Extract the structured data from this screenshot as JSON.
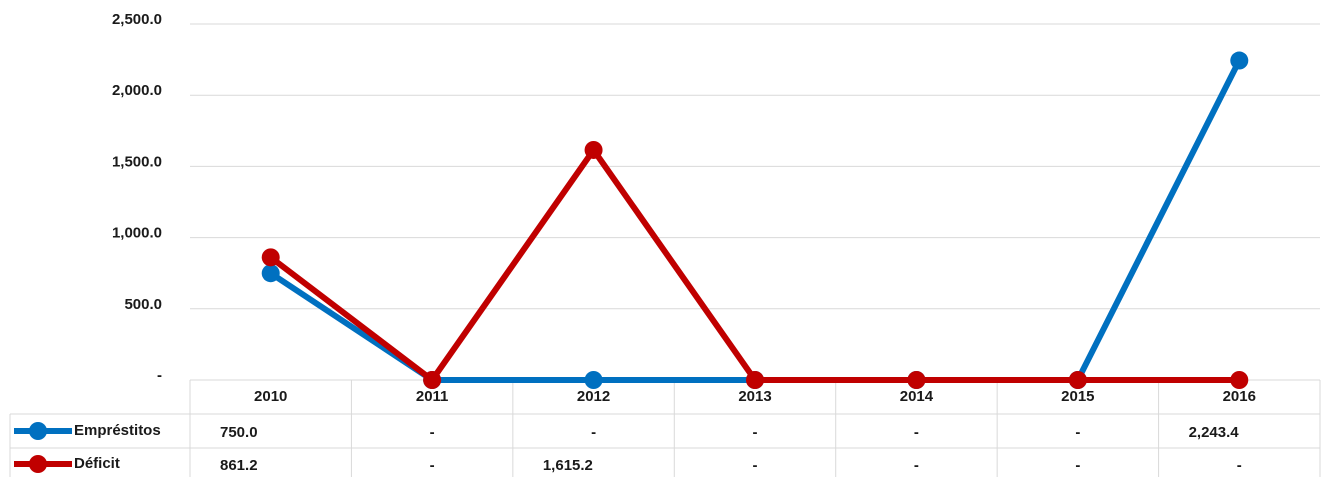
{
  "chart_data": {
    "type": "line",
    "categories": [
      "2010",
      "2011",
      "2012",
      "2013",
      "2014",
      "2015",
      "2016"
    ],
    "series": [
      {
        "name": "Empréstitos",
        "color": "#0070c0",
        "values": [
          750.0,
          0,
          0,
          0,
          0,
          0,
          2243.4
        ],
        "value_labels": [
          "750.0",
          "-",
          "-",
          "-",
          "-",
          "-",
          "2,243.4"
        ]
      },
      {
        "name": "Déficit",
        "color": "#c00000",
        "values": [
          861.2,
          0,
          1615.2,
          0,
          0,
          0,
          0
        ],
        "value_labels": [
          "861.2",
          "-",
          "1,615.2",
          "-",
          "-",
          "-",
          "-"
        ]
      }
    ],
    "ylim": [
      0,
      2500
    ],
    "yticks": [
      {
        "value": 0,
        "label": "-"
      },
      {
        "value": 500,
        "label": "500.0"
      },
      {
        "value": 1000,
        "label": "1,000.0"
      },
      {
        "value": 1500,
        "label": "1,500.0"
      },
      {
        "value": 2000,
        "label": "2,000.0"
      },
      {
        "value": 2500,
        "label": "2,500.0"
      }
    ],
    "grid": true,
    "data_table": true
  }
}
